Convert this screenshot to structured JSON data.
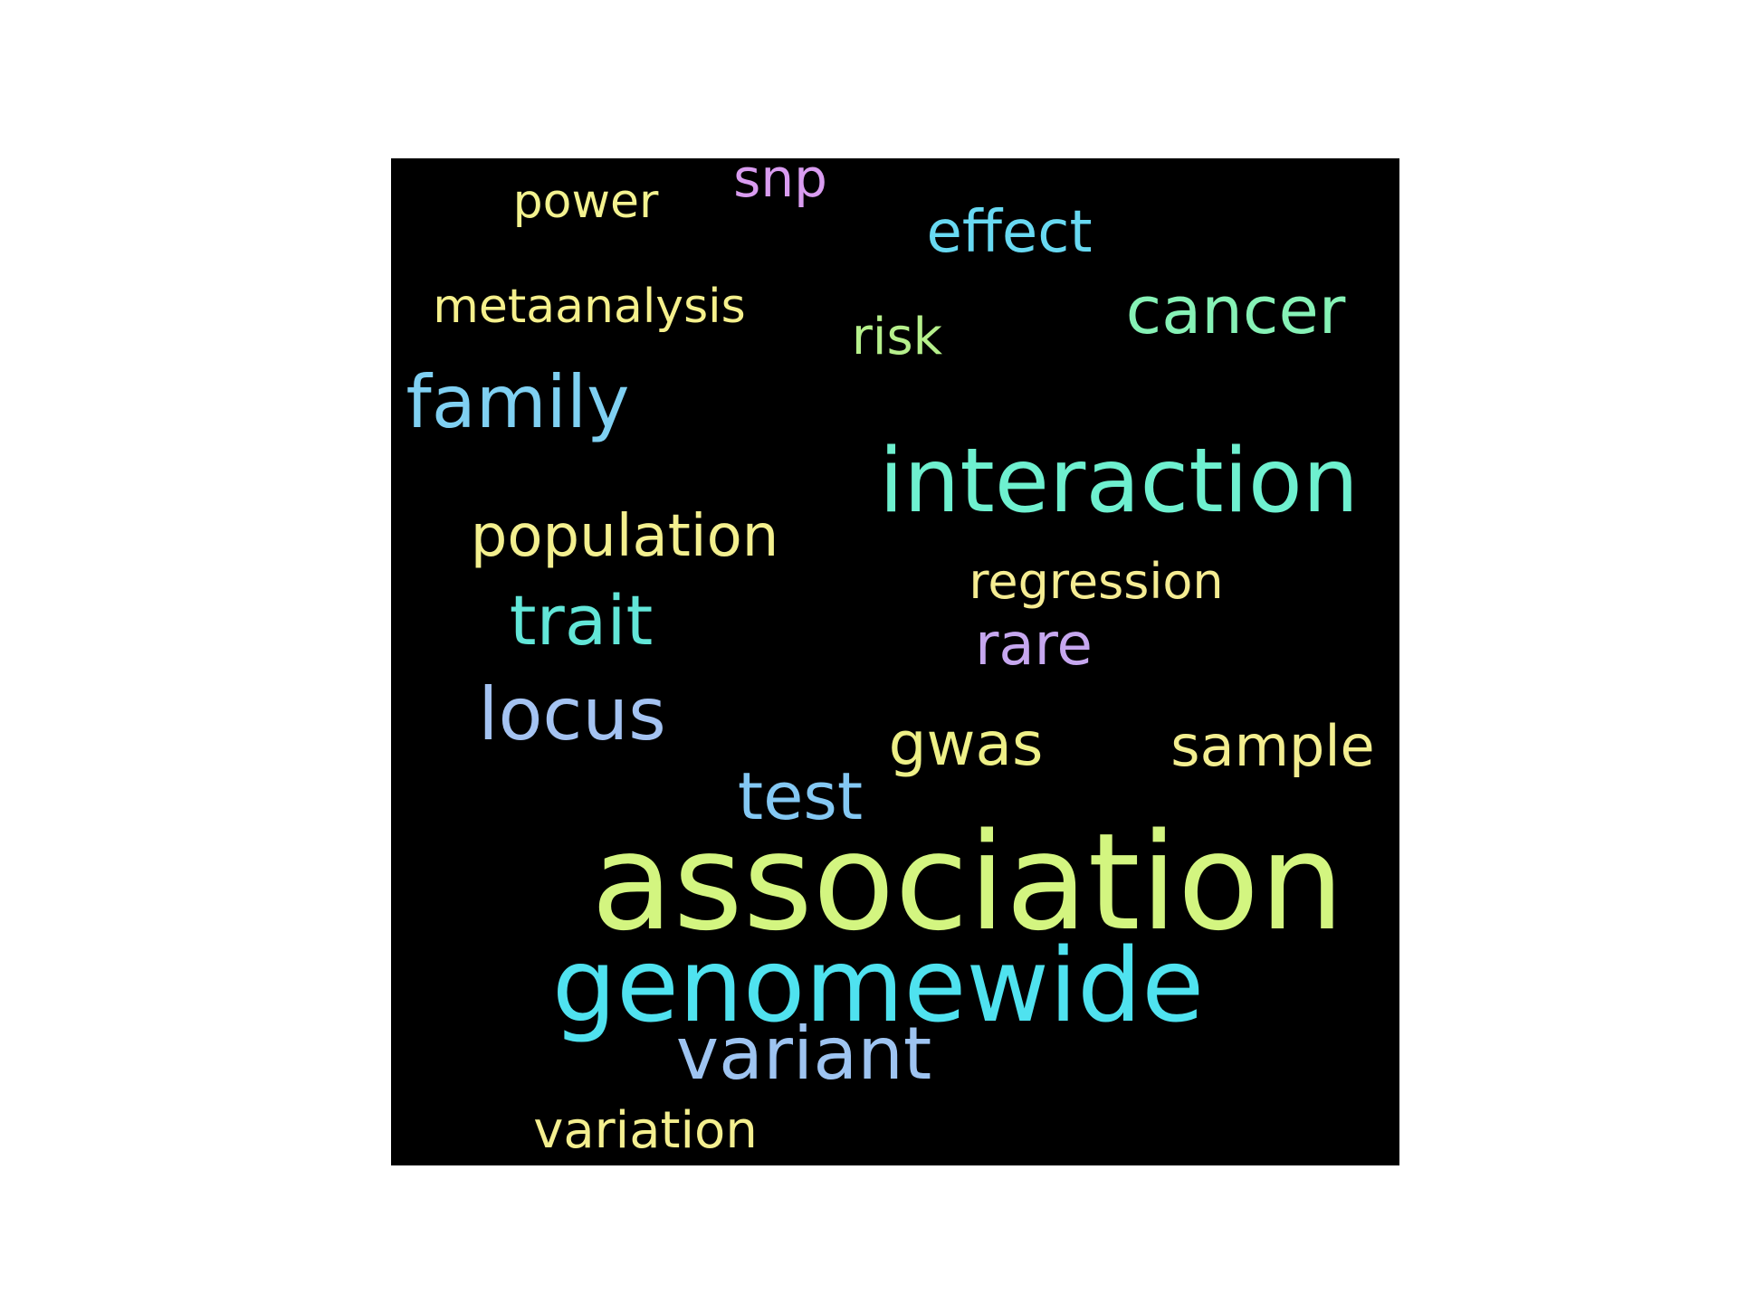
{
  "words": [
    {
      "text": "power",
      "color": "#f3f28f"
    },
    {
      "text": "snp",
      "color": "#d99cf0"
    },
    {
      "text": "effect",
      "color": "#68d9f2"
    },
    {
      "text": "metaanalysis",
      "color": "#f5f08c"
    },
    {
      "text": "risk",
      "color": "#b6f08c"
    },
    {
      "text": "cancer",
      "color": "#86f2b6"
    },
    {
      "text": "family",
      "color": "#7fd0f2"
    },
    {
      "text": "interaction",
      "color": "#6ef0cf"
    },
    {
      "text": "population",
      "color": "#f3ef8e"
    },
    {
      "text": "regression",
      "color": "#f5ec92"
    },
    {
      "text": "trait",
      "color": "#62e6d8"
    },
    {
      "text": "rare",
      "color": "#c6a7ef"
    },
    {
      "text": "locus",
      "color": "#a4c3f2"
    },
    {
      "text": "gwas",
      "color": "#eef087"
    },
    {
      "text": "sample",
      "color": "#f3ee8f"
    },
    {
      "text": "test",
      "color": "#84c8f3"
    },
    {
      "text": "association",
      "color": "#d3f580"
    },
    {
      "text": "genomewide",
      "color": "#4fe2ef"
    },
    {
      "text": "variant",
      "color": "#9ec4f1"
    },
    {
      "text": "variation",
      "color": "#f4ef8f"
    }
  ]
}
